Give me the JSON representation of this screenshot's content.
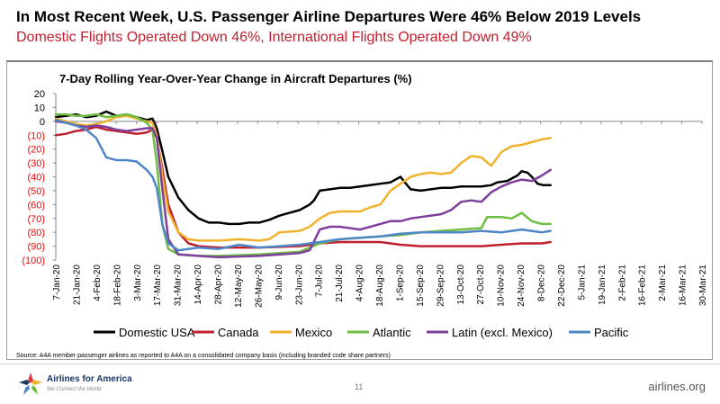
{
  "header": {
    "title": "In Most Recent Week, U.S. Passenger Airline Departures Were 46% Below 2019 Levels",
    "subtitle": "Domestic Flights Operated Down 46%, International Flights Operated Down 49%"
  },
  "footer": {
    "source": "Source: A4A member passenger airlines as reported to A4A on a consolidated company basis (including branded code share partners)",
    "logo_name": "Airlines for America",
    "logo_tagline": "We Connect the World",
    "page_number": "11",
    "website": "airlines.org"
  },
  "chart_data": {
    "type": "line",
    "title": "7-Day Rolling Year-Over-Year Change in Aircraft Departures (%)",
    "xlabel": "",
    "ylabel": "",
    "ylim": [
      -100,
      20
    ],
    "y_ticks": [
      20,
      10,
      0,
      -10,
      -20,
      -30,
      -40,
      -50,
      -60,
      -70,
      -80,
      -90,
      -100
    ],
    "y_tick_labels": [
      "20",
      "10",
      "0",
      "(10)",
      "(20)",
      "(30)",
      "(40)",
      "(50)",
      "(60)",
      "(70)",
      "(80)",
      "(90)",
      "(100)"
    ],
    "x_range": [
      "2020-01-07",
      "2021-03-30"
    ],
    "x_tick_labels": [
      "7-Jan-20",
      "21-Jan-20",
      "4-Feb-20",
      "18-Feb-20",
      "3-Mar-20",
      "17-Mar-20",
      "31-Mar-20",
      "14-Apr-20",
      "28-Apr-20",
      "12-May-20",
      "26-May-20",
      "9-Jun-20",
      "23-Jun-20",
      "7-Jul-20",
      "21-Jul-20",
      "4-Aug-20",
      "18-Aug-20",
      "1-Sep-20",
      "15-Sep-20",
      "29-Sep-20",
      "13-Oct-20",
      "27-Oct-20",
      "10-Nov-20",
      "24-Nov-20",
      "8-Dec-20",
      "22-Dec-20",
      "5-Jan-21",
      "19-Jan-21",
      "2-Feb-21",
      "16-Feb-21",
      "2-Mar-21",
      "16-Mar-21",
      "30-Mar-21"
    ],
    "grid": false,
    "legend_position": "bottom",
    "series": [
      {
        "name": "Domestic USA",
        "color": "#000000",
        "points": [
          [
            "2020-01-07",
            3
          ],
          [
            "2020-01-14",
            4
          ],
          [
            "2020-01-21",
            5
          ],
          [
            "2020-01-28",
            3
          ],
          [
            "2020-02-04",
            4
          ],
          [
            "2020-02-11",
            7
          ],
          [
            "2020-02-18",
            4
          ],
          [
            "2020-02-25",
            5
          ],
          [
            "2020-03-03",
            3
          ],
          [
            "2020-03-10",
            1
          ],
          [
            "2020-03-14",
            2
          ],
          [
            "2020-03-17",
            -5
          ],
          [
            "2020-03-21",
            -22
          ],
          [
            "2020-03-25",
            -40
          ],
          [
            "2020-04-01",
            -55
          ],
          [
            "2020-04-08",
            -64
          ],
          [
            "2020-04-15",
            -70
          ],
          [
            "2020-04-22",
            -73
          ],
          [
            "2020-04-29",
            -73
          ],
          [
            "2020-05-06",
            -74
          ],
          [
            "2020-05-13",
            -74
          ],
          [
            "2020-05-20",
            -73
          ],
          [
            "2020-05-27",
            -73
          ],
          [
            "2020-06-03",
            -71
          ],
          [
            "2020-06-10",
            -68
          ],
          [
            "2020-06-17",
            -66
          ],
          [
            "2020-06-24",
            -64
          ],
          [
            "2020-07-01",
            -60
          ],
          [
            "2020-07-04",
            -57
          ],
          [
            "2020-07-08",
            -50
          ],
          [
            "2020-07-15",
            -49
          ],
          [
            "2020-07-22",
            -48
          ],
          [
            "2020-07-29",
            -48
          ],
          [
            "2020-08-05",
            -47
          ],
          [
            "2020-08-12",
            -46
          ],
          [
            "2020-08-19",
            -45
          ],
          [
            "2020-08-26",
            -44
          ],
          [
            "2020-09-02",
            -40
          ],
          [
            "2020-09-05",
            -44
          ],
          [
            "2020-09-09",
            -49
          ],
          [
            "2020-09-16",
            -50
          ],
          [
            "2020-09-23",
            -49
          ],
          [
            "2020-09-30",
            -48
          ],
          [
            "2020-10-07",
            -48
          ],
          [
            "2020-10-14",
            -47
          ],
          [
            "2020-10-21",
            -47
          ],
          [
            "2020-10-28",
            -47
          ],
          [
            "2020-11-04",
            -46
          ],
          [
            "2020-11-08",
            -44
          ],
          [
            "2020-11-15",
            -43
          ],
          [
            "2020-11-22",
            -39
          ],
          [
            "2020-11-25",
            -36
          ],
          [
            "2020-11-29",
            -37
          ],
          [
            "2020-12-02",
            -40
          ],
          [
            "2020-12-06",
            -45
          ],
          [
            "2020-12-10",
            -46
          ],
          [
            "2020-12-15",
            -46
          ]
        ]
      },
      {
        "name": "Canada",
        "color": "#c0202e",
        "points": [
          [
            "2020-01-07",
            -10
          ],
          [
            "2020-01-14",
            -9
          ],
          [
            "2020-01-21",
            -7
          ],
          [
            "2020-01-28",
            -6
          ],
          [
            "2020-02-04",
            -4
          ],
          [
            "2020-02-11",
            -6
          ],
          [
            "2020-02-18",
            -7
          ],
          [
            "2020-02-25",
            -8
          ],
          [
            "2020-03-03",
            -9
          ],
          [
            "2020-03-10",
            -8
          ],
          [
            "2020-03-14",
            -6
          ],
          [
            "2020-03-17",
            -12
          ],
          [
            "2020-03-21",
            -35
          ],
          [
            "2020-03-25",
            -60
          ],
          [
            "2020-04-01",
            -80
          ],
          [
            "2020-04-08",
            -88
          ],
          [
            "2020-04-15",
            -90
          ],
          [
            "2020-04-29",
            -91
          ],
          [
            "2020-05-27",
            -91
          ],
          [
            "2020-06-24",
            -90
          ],
          [
            "2020-07-08",
            -88
          ],
          [
            "2020-07-22",
            -87
          ],
          [
            "2020-08-05",
            -87
          ],
          [
            "2020-08-19",
            -87
          ],
          [
            "2020-09-02",
            -89
          ],
          [
            "2020-09-16",
            -90
          ],
          [
            "2020-09-30",
            -90
          ],
          [
            "2020-10-14",
            -90
          ],
          [
            "2020-10-28",
            -90
          ],
          [
            "2020-11-11",
            -89
          ],
          [
            "2020-11-25",
            -88
          ],
          [
            "2020-12-09",
            -88
          ],
          [
            "2020-12-15",
            -87
          ]
        ]
      },
      {
        "name": "Mexico",
        "color": "#f0b22d",
        "points": [
          [
            "2020-01-07",
            2
          ],
          [
            "2020-01-14",
            0
          ],
          [
            "2020-01-21",
            -2
          ],
          [
            "2020-01-28",
            -3
          ],
          [
            "2020-02-04",
            -2
          ],
          [
            "2020-02-11",
            0
          ],
          [
            "2020-02-18",
            3
          ],
          [
            "2020-02-25",
            4
          ],
          [
            "2020-03-03",
            2
          ],
          [
            "2020-03-10",
            0
          ],
          [
            "2020-03-14",
            -1
          ],
          [
            "2020-03-17",
            -10
          ],
          [
            "2020-03-21",
            -40
          ],
          [
            "2020-03-25",
            -65
          ],
          [
            "2020-04-01",
            -80
          ],
          [
            "2020-04-08",
            -85
          ],
          [
            "2020-04-15",
            -86
          ],
          [
            "2020-04-29",
            -86
          ],
          [
            "2020-05-13",
            -85
          ],
          [
            "2020-05-27",
            -86
          ],
          [
            "2020-06-03",
            -85
          ],
          [
            "2020-06-10",
            -80
          ],
          [
            "2020-06-24",
            -79
          ],
          [
            "2020-07-01",
            -76
          ],
          [
            "2020-07-08",
            -70
          ],
          [
            "2020-07-15",
            -66
          ],
          [
            "2020-07-22",
            -65
          ],
          [
            "2020-08-05",
            -65
          ],
          [
            "2020-08-12",
            -62
          ],
          [
            "2020-08-19",
            -60
          ],
          [
            "2020-08-26",
            -50
          ],
          [
            "2020-09-02",
            -45
          ],
          [
            "2020-09-09",
            -40
          ],
          [
            "2020-09-16",
            -38
          ],
          [
            "2020-09-23",
            -37
          ],
          [
            "2020-09-30",
            -38
          ],
          [
            "2020-10-07",
            -37
          ],
          [
            "2020-10-14",
            -30
          ],
          [
            "2020-10-21",
            -25
          ],
          [
            "2020-10-28",
            -26
          ],
          [
            "2020-11-04",
            -32
          ],
          [
            "2020-11-11",
            -22
          ],
          [
            "2020-11-18",
            -18
          ],
          [
            "2020-11-25",
            -17
          ],
          [
            "2020-12-02",
            -15
          ],
          [
            "2020-12-09",
            -13
          ],
          [
            "2020-12-15",
            -12
          ]
        ]
      },
      {
        "name": "Atlantic",
        "color": "#6fbe44",
        "points": [
          [
            "2020-01-07",
            5
          ],
          [
            "2020-01-14",
            5
          ],
          [
            "2020-01-21",
            4
          ],
          [
            "2020-01-28",
            4
          ],
          [
            "2020-02-04",
            5
          ],
          [
            "2020-02-11",
            3
          ],
          [
            "2020-02-18",
            4
          ],
          [
            "2020-02-25",
            5
          ],
          [
            "2020-03-03",
            3
          ],
          [
            "2020-03-10",
            -1
          ],
          [
            "2020-03-14",
            -6
          ],
          [
            "2020-03-17",
            -30
          ],
          [
            "2020-03-21",
            -75
          ],
          [
            "2020-03-25",
            -92
          ],
          [
            "2020-04-01",
            -96
          ],
          [
            "2020-04-15",
            -97
          ],
          [
            "2020-04-29",
            -97
          ],
          [
            "2020-05-27",
            -96
          ],
          [
            "2020-06-24",
            -94
          ],
          [
            "2020-07-08",
            -88
          ],
          [
            "2020-07-22",
            -85
          ],
          [
            "2020-08-05",
            -84
          ],
          [
            "2020-08-19",
            -83
          ],
          [
            "2020-09-02",
            -82
          ],
          [
            "2020-09-16",
            -80
          ],
          [
            "2020-09-30",
            -79
          ],
          [
            "2020-10-14",
            -78
          ],
          [
            "2020-10-28",
            -77
          ],
          [
            "2020-11-01",
            -69
          ],
          [
            "2020-11-11",
            -69
          ],
          [
            "2020-11-18",
            -70
          ],
          [
            "2020-11-25",
            -66
          ],
          [
            "2020-12-02",
            -72
          ],
          [
            "2020-12-09",
            -74
          ],
          [
            "2020-12-15",
            -74
          ]
        ]
      },
      {
        "name": "Latin (excl. Mexico)",
        "color": "#7d3f9b",
        "points": [
          [
            "2020-01-07",
            0
          ],
          [
            "2020-01-14",
            -1
          ],
          [
            "2020-01-21",
            -3
          ],
          [
            "2020-01-28",
            -4
          ],
          [
            "2020-02-04",
            -3
          ],
          [
            "2020-02-11",
            -4
          ],
          [
            "2020-02-18",
            -6
          ],
          [
            "2020-02-25",
            -7
          ],
          [
            "2020-03-03",
            -6
          ],
          [
            "2020-03-10",
            -5
          ],
          [
            "2020-03-14",
            -5
          ],
          [
            "2020-03-17",
            -12
          ],
          [
            "2020-03-21",
            -50
          ],
          [
            "2020-03-25",
            -85
          ],
          [
            "2020-04-01",
            -96
          ],
          [
            "2020-04-15",
            -97
          ],
          [
            "2020-04-29",
            -98
          ],
          [
            "2020-05-27",
            -97
          ],
          [
            "2020-06-24",
            -95
          ],
          [
            "2020-07-01",
            -93
          ],
          [
            "2020-07-08",
            -78
          ],
          [
            "2020-07-15",
            -76
          ],
          [
            "2020-07-22",
            -76
          ],
          [
            "2020-08-05",
            -78
          ],
          [
            "2020-08-19",
            -74
          ],
          [
            "2020-08-26",
            -72
          ],
          [
            "2020-09-02",
            -72
          ],
          [
            "2020-09-09",
            -70
          ],
          [
            "2020-09-16",
            -69
          ],
          [
            "2020-09-30",
            -67
          ],
          [
            "2020-10-07",
            -64
          ],
          [
            "2020-10-14",
            -58
          ],
          [
            "2020-10-21",
            -57
          ],
          [
            "2020-10-28",
            -58
          ],
          [
            "2020-11-04",
            -51
          ],
          [
            "2020-11-11",
            -47
          ],
          [
            "2020-11-18",
            -44
          ],
          [
            "2020-11-25",
            -42
          ],
          [
            "2020-12-02",
            -43
          ],
          [
            "2020-12-09",
            -39
          ],
          [
            "2020-12-15",
            -35
          ]
        ]
      },
      {
        "name": "Pacific",
        "color": "#4f86c6",
        "points": [
          [
            "2020-01-07",
            1
          ],
          [
            "2020-01-14",
            -1
          ],
          [
            "2020-01-21",
            -3
          ],
          [
            "2020-01-28",
            -6
          ],
          [
            "2020-02-04",
            -12
          ],
          [
            "2020-02-11",
            -26
          ],
          [
            "2020-02-18",
            -28
          ],
          [
            "2020-02-25",
            -28
          ],
          [
            "2020-03-03",
            -29
          ],
          [
            "2020-03-10",
            -35
          ],
          [
            "2020-03-14",
            -40
          ],
          [
            "2020-03-17",
            -48
          ],
          [
            "2020-03-21",
            -75
          ],
          [
            "2020-03-25",
            -88
          ],
          [
            "2020-04-01",
            -93
          ],
          [
            "2020-04-15",
            -91
          ],
          [
            "2020-04-29",
            -92
          ],
          [
            "2020-05-13",
            -89
          ],
          [
            "2020-05-27",
            -91
          ],
          [
            "2020-06-10",
            -90
          ],
          [
            "2020-06-24",
            -89
          ],
          [
            "2020-07-08",
            -87
          ],
          [
            "2020-07-22",
            -85
          ],
          [
            "2020-08-05",
            -84
          ],
          [
            "2020-08-19",
            -83
          ],
          [
            "2020-09-02",
            -81
          ],
          [
            "2020-09-16",
            -80
          ],
          [
            "2020-09-30",
            -80
          ],
          [
            "2020-10-14",
            -80
          ],
          [
            "2020-10-28",
            -79
          ],
          [
            "2020-11-11",
            -80
          ],
          [
            "2020-11-25",
            -78
          ],
          [
            "2020-12-09",
            -80
          ],
          [
            "2020-12-15",
            -79
          ]
        ]
      }
    ]
  }
}
